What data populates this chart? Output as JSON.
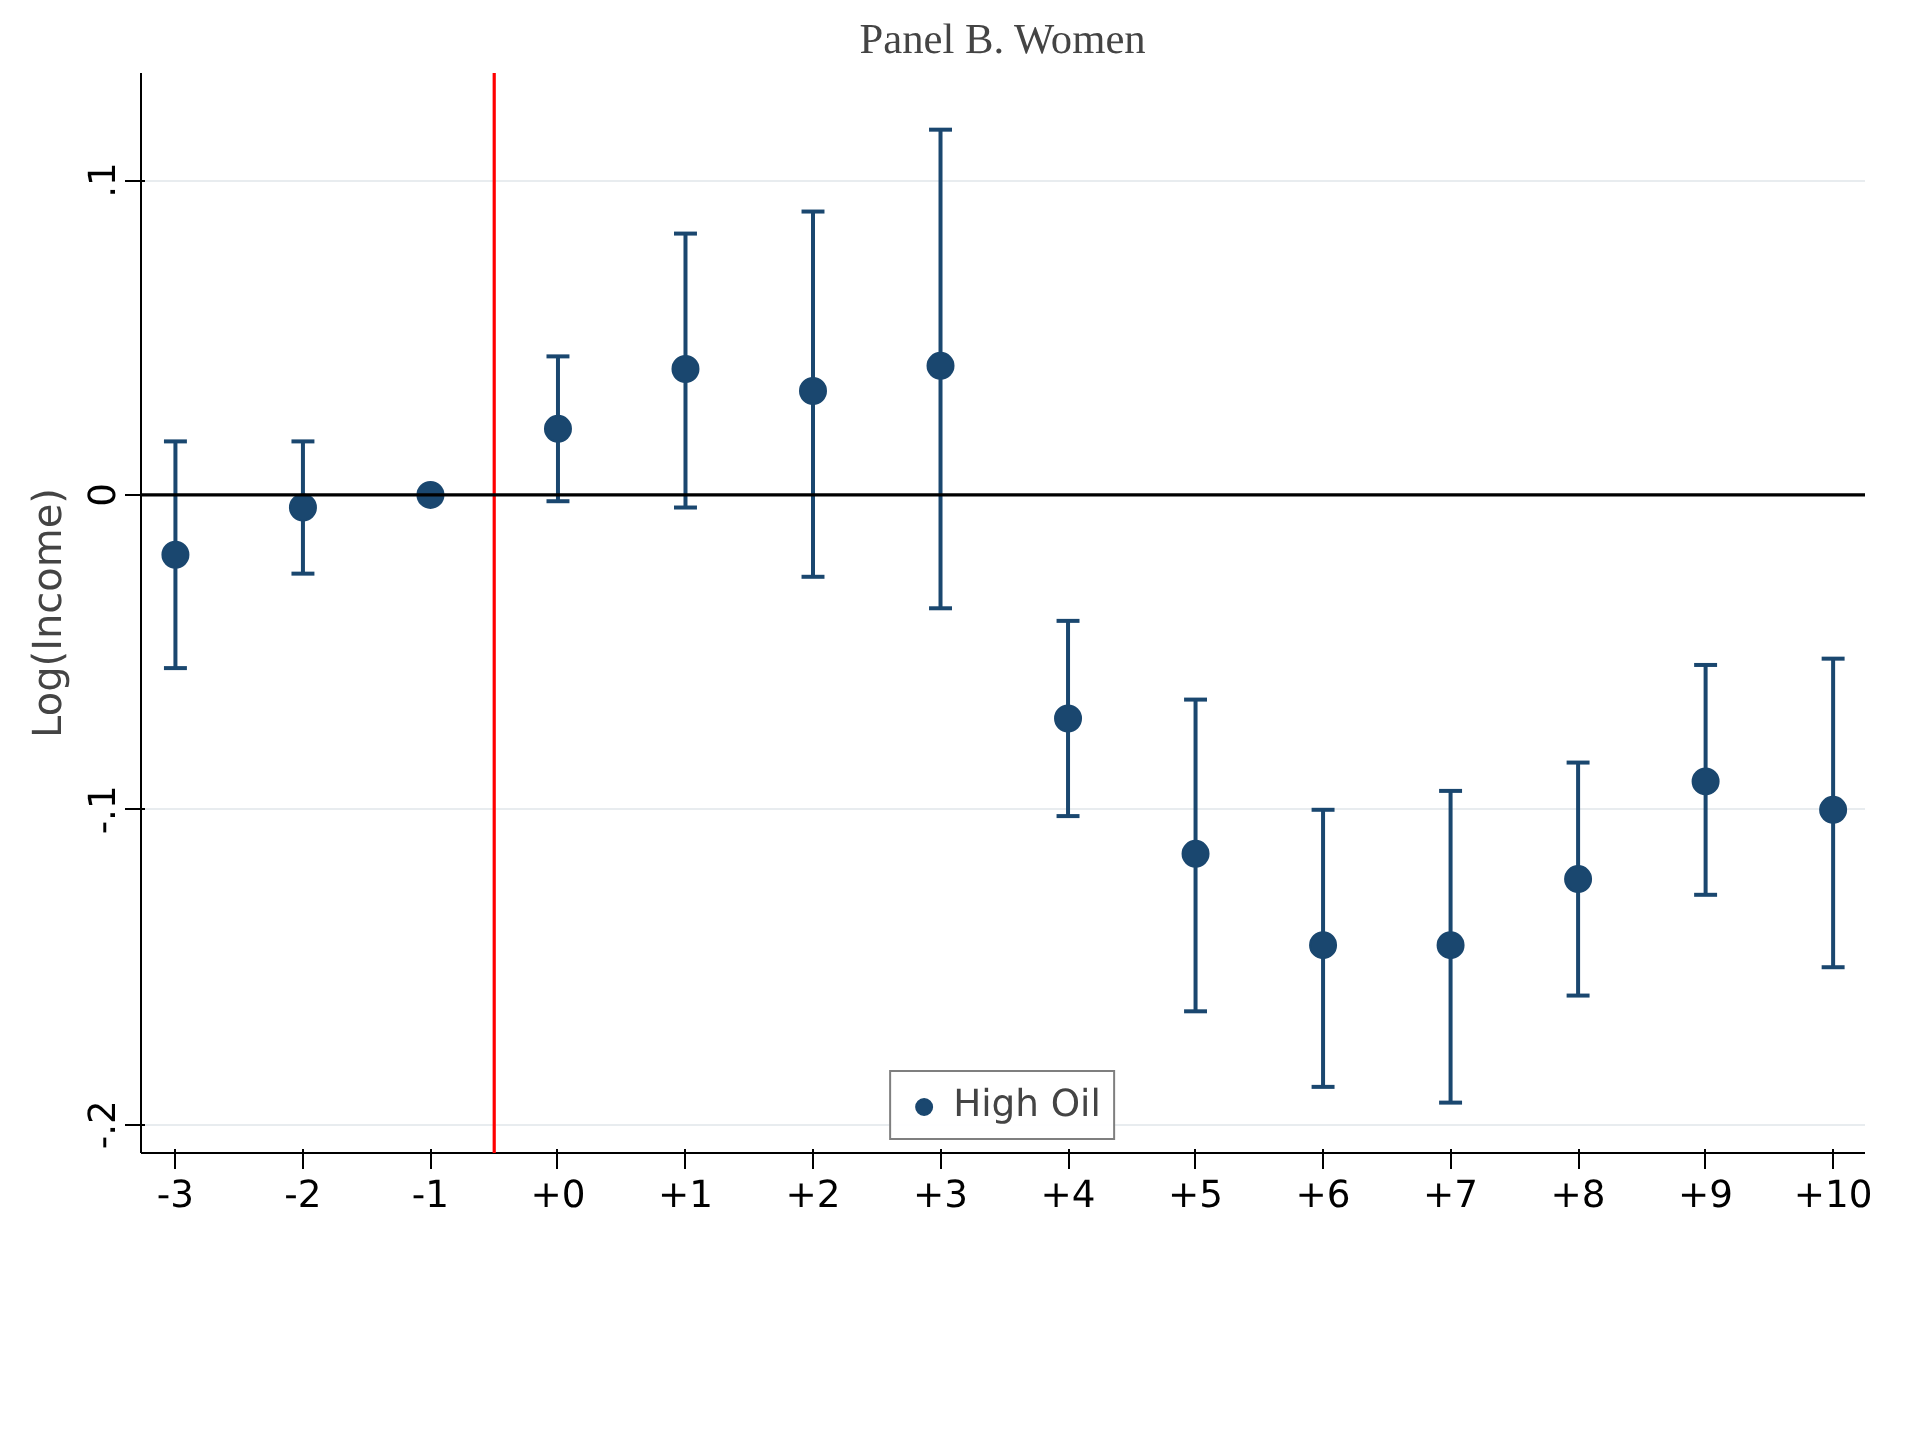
{
  "chart_data": {
    "type": "scatter",
    "title": "Panel B. Women",
    "ylabel": "Log(Income)",
    "x": [
      -3,
      -2,
      -1,
      0,
      1,
      2,
      3,
      4,
      5,
      6,
      7,
      8,
      9,
      10
    ],
    "series": [
      {
        "name": "High Oil",
        "color": "#1a476f",
        "values": [
          -0.019,
          -0.004,
          0,
          0.021,
          0.04,
          0.033,
          0.041,
          -0.071,
          -0.114,
          -0.143,
          -0.143,
          -0.122,
          -0.091,
          -0.1
        ],
        "errors": [
          [
            -0.055,
            0.017
          ],
          [
            -0.025,
            0.017
          ],
          null,
          [
            -0.002,
            0.044
          ],
          [
            -0.004,
            0.083
          ],
          [
            -0.026,
            0.09
          ],
          [
            -0.036,
            0.116
          ],
          [
            -0.102,
            -0.04
          ],
          [
            -0.164,
            -0.065
          ],
          [
            -0.188,
            -0.1
          ],
          [
            -0.193,
            -0.094
          ],
          [
            -0.159,
            -0.085
          ],
          [
            -0.127,
            -0.054
          ],
          [
            -0.15,
            -0.052
          ]
        ]
      }
    ],
    "xlim": [
      -3.27,
      10.25
    ],
    "ylim": [
      -0.209,
      0.134
    ],
    "xticks": [
      {
        "value": -3,
        "label": "-3"
      },
      {
        "value": -2,
        "label": "-2"
      },
      {
        "value": -1,
        "label": "-1"
      },
      {
        "value": 0,
        "label": "+0"
      },
      {
        "value": 1,
        "label": "+1"
      },
      {
        "value": 2,
        "label": "+2"
      },
      {
        "value": 3,
        "label": "+3"
      },
      {
        "value": 4,
        "label": "+4"
      },
      {
        "value": 5,
        "label": "+5"
      },
      {
        "value": 6,
        "label": "+6"
      },
      {
        "value": 7,
        "label": "+7"
      },
      {
        "value": 8,
        "label": "+8"
      },
      {
        "value": 9,
        "label": "+9"
      },
      {
        "value": 10,
        "label": "+10"
      }
    ],
    "yticks": [
      {
        "value": -0.2,
        "label": "-.2"
      },
      {
        "value": -0.1,
        "label": "-.1"
      },
      {
        "value": 0,
        "label": "0"
      },
      {
        "value": 0.1,
        "label": ".1"
      }
    ],
    "ref_lines": [
      {
        "axis": "x",
        "value": -0.5,
        "color": "#ff0000"
      },
      {
        "axis": "y",
        "value": 0,
        "color": "#000000"
      }
    ],
    "grid": "y",
    "legend": "bottom",
    "marker": "circle"
  }
}
